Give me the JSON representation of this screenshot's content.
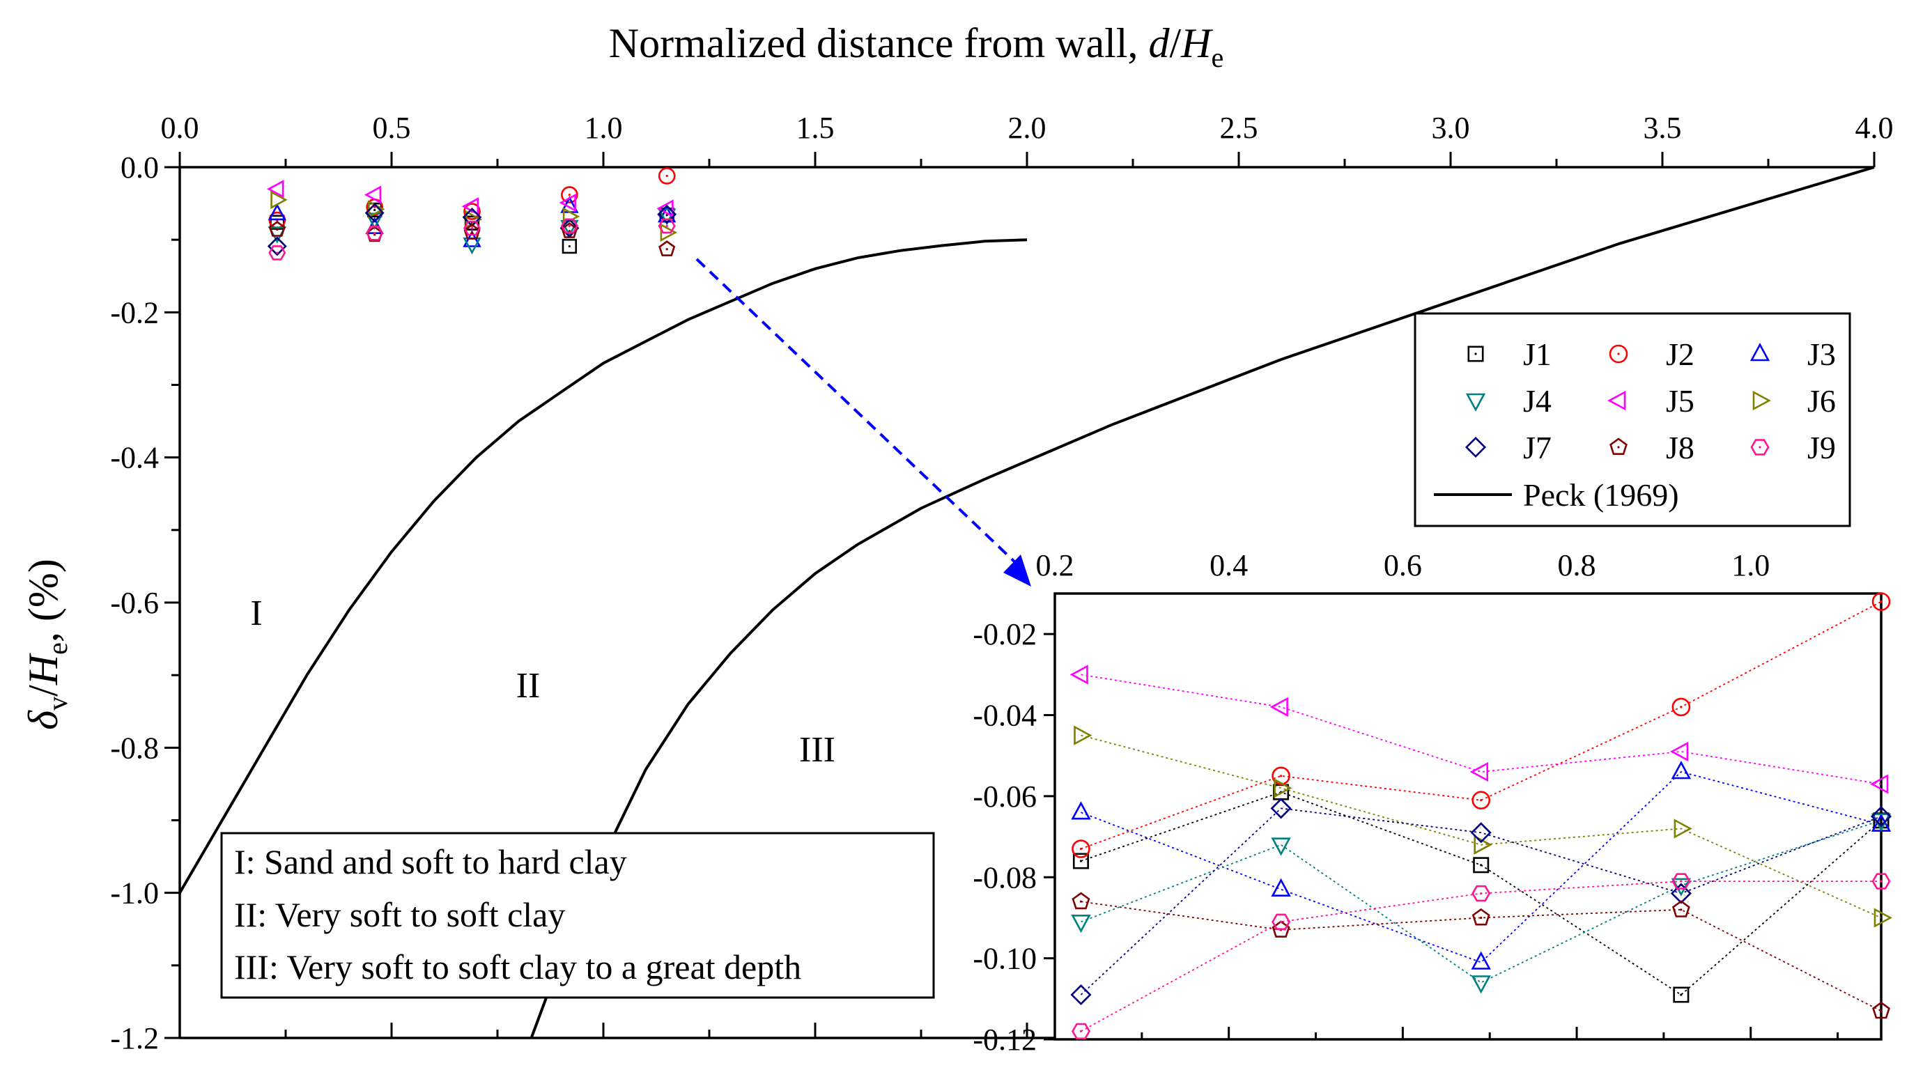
{
  "chart_data": [
    {
      "type": "scatter",
      "title": "",
      "xlabel": "Normalized distance from wall, d/He",
      "xlabel_parts": {
        "prefix": "Normalized distance from wall, ",
        "var1": "d",
        "slash": "/",
        "var2": "H",
        "sub": "e"
      },
      "ylabel": "δv/He, (%)",
      "ylabel_parts": {
        "var1": "δ",
        "sub1": "v",
        "slash": "/",
        "var2": "H",
        "sub2": "e",
        "suffix": ", (%)"
      },
      "xlim": [
        0.0,
        4.0
      ],
      "ylim": [
        -1.2,
        0.0
      ],
      "x_axis_position": "top",
      "x_ticks": [
        "0.0",
        "0.5",
        "1.0",
        "1.5",
        "2.0",
        "2.5",
        "3.0",
        "3.5",
        "4.0"
      ],
      "y_ticks": [
        "0.0",
        "-0.2",
        "-0.4",
        "-0.6",
        "-0.8",
        "-1.0",
        "-1.2"
      ],
      "legend_position": "top-right",
      "series": [
        {
          "name": "J1",
          "marker": "square",
          "color": "#000000",
          "x": [
            0.23,
            0.46,
            0.69,
            0.92,
            1.15
          ],
          "y": [
            -0.076,
            -0.059,
            -0.077,
            -0.109,
            -0.066
          ]
        },
        {
          "name": "J2",
          "marker": "circle",
          "color": "#FF0000",
          "x": [
            0.23,
            0.46,
            0.69,
            0.92,
            1.15
          ],
          "y": [
            -0.073,
            -0.055,
            -0.061,
            -0.038,
            -0.012
          ]
        },
        {
          "name": "J3",
          "marker": "triangle-up",
          "color": "#0000FF",
          "x": [
            0.23,
            0.46,
            0.69,
            0.92,
            1.15
          ],
          "y": [
            -0.064,
            -0.083,
            -0.101,
            -0.054,
            -0.067
          ]
        },
        {
          "name": "J4",
          "marker": "triangle-down",
          "color": "#008080",
          "x": [
            0.23,
            0.46,
            0.69,
            0.92,
            1.15
          ],
          "y": [
            -0.091,
            -0.072,
            -0.106,
            -0.082,
            -0.066
          ]
        },
        {
          "name": "J5",
          "marker": "triangle-left",
          "color": "#FF00FF",
          "x": [
            0.23,
            0.46,
            0.69,
            0.92,
            1.15
          ],
          "y": [
            -0.03,
            -0.038,
            -0.054,
            -0.049,
            -0.057
          ]
        },
        {
          "name": "J6",
          "marker": "triangle-right",
          "color": "#808000",
          "x": [
            0.23,
            0.46,
            0.69,
            0.92,
            1.15
          ],
          "y": [
            -0.045,
            -0.058,
            -0.072,
            -0.068,
            -0.09
          ]
        },
        {
          "name": "J7",
          "marker": "diamond",
          "color": "#000080",
          "x": [
            0.23,
            0.46,
            0.69,
            0.92,
            1.15
          ],
          "y": [
            -0.109,
            -0.063,
            -0.069,
            -0.084,
            -0.065
          ]
        },
        {
          "name": "J8",
          "marker": "pentagon",
          "color": "#800000",
          "x": [
            0.23,
            0.46,
            0.69,
            0.92,
            1.15
          ],
          "y": [
            -0.086,
            -0.093,
            -0.09,
            -0.088,
            -0.113
          ]
        },
        {
          "name": "J9",
          "marker": "hexagon",
          "color": "#FF1493",
          "x": [
            0.23,
            0.46,
            0.69,
            0.92,
            1.15
          ],
          "y": [
            -0.118,
            -0.091,
            -0.084,
            -0.081,
            -0.081
          ]
        }
      ],
      "peck_curves": {
        "name": "Peck (1969)",
        "color": "#000000",
        "curves": [
          {
            "x": [
              0.0,
              0.1,
              0.2,
              0.3,
              0.4,
              0.5,
              0.6,
              0.7,
              0.8,
              0.9,
              1.0,
              1.1,
              1.2,
              1.3,
              1.4,
              1.5,
              1.6,
              1.7,
              1.8,
              1.9,
              2.0
            ],
            "y": [
              -1.0,
              -0.9,
              -0.8,
              -0.7,
              -0.61,
              -0.53,
              -0.46,
              -0.4,
              -0.35,
              -0.31,
              -0.27,
              -0.24,
              -0.21,
              -0.185,
              -0.16,
              -0.14,
              -0.125,
              -0.115,
              -0.108,
              -0.102,
              -0.1
            ]
          },
          {
            "x": [
              0.83,
              0.9,
              1.0,
              1.1,
              1.2,
              1.3,
              1.4,
              1.5,
              1.6,
              1.75,
              1.9,
              2.0,
              2.2,
              2.4,
              2.6,
              2.8,
              3.0,
              3.2,
              3.4,
              3.6,
              3.8,
              4.0
            ],
            "y": [
              -1.2,
              -1.09,
              -0.95,
              -0.83,
              -0.74,
              -0.67,
              -0.61,
              -0.56,
              -0.52,
              -0.47,
              -0.43,
              -0.405,
              -0.355,
              -0.31,
              -0.265,
              -0.225,
              -0.185,
              -0.145,
              -0.105,
              -0.07,
              -0.035,
              0.0
            ]
          }
        ]
      },
      "regions": [
        "I",
        "II",
        "III"
      ],
      "notes": [
        "I: Sand and soft to hard clay",
        "II: Very soft to soft clay",
        "III: Very soft to soft clay to a great depth"
      ]
    },
    {
      "type": "line",
      "title": "",
      "inset": true,
      "xlim": [
        0.2,
        1.15
      ],
      "ylim": [
        -0.12,
        -0.01
      ],
      "x_ticks": [
        "0.2",
        "0.4",
        "0.6",
        "0.8",
        "1.0"
      ],
      "y_ticks": [
        "-0.02",
        "-0.04",
        "-0.06",
        "-0.08",
        "-0.10",
        "-0.12"
      ],
      "line_style": "dotted",
      "series_ref": "same data as main chart series J1–J9"
    }
  ]
}
